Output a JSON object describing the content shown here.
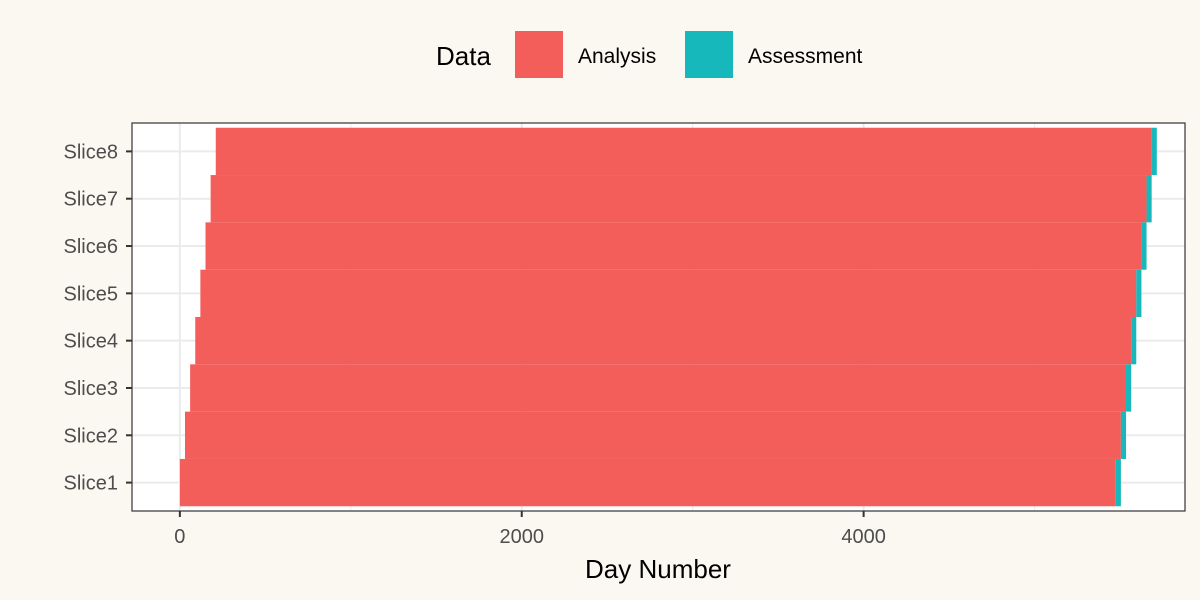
{
  "chart_data": {
    "type": "bar",
    "orientation": "horizontal",
    "stacked": true,
    "title": "",
    "xlabel": "Day Number",
    "ylabel": "",
    "categories": [
      "Slice1",
      "Slice2",
      "Slice3",
      "Slice4",
      "Slice5",
      "Slice6",
      "Slice7",
      "Slice8"
    ],
    "series": [
      {
        "name": "Analysis",
        "color": "#F35E5A",
        "ranges": [
          [
            0,
            5475
          ],
          [
            30,
            5505
          ],
          [
            60,
            5535
          ],
          [
            90,
            5565
          ],
          [
            120,
            5595
          ],
          [
            150,
            5625
          ],
          [
            180,
            5655
          ],
          [
            210,
            5685
          ]
        ]
      },
      {
        "name": "Assessment",
        "color": "#17B8BB",
        "ranges": [
          [
            5475,
            5505
          ],
          [
            5505,
            5535
          ],
          [
            5535,
            5565
          ],
          [
            5565,
            5595
          ],
          [
            5595,
            5625
          ],
          [
            5625,
            5655
          ],
          [
            5655,
            5685
          ],
          [
            5685,
            5715
          ]
        ]
      }
    ],
    "xticks": [
      0,
      2000,
      4000
    ],
    "xtick_labels": [
      "0",
      "2000",
      "4000"
    ],
    "xlim": [
      -280,
      5880
    ],
    "grid": true,
    "legend": {
      "title": "Data",
      "position": "top",
      "entries": [
        "Analysis",
        "Assessment"
      ]
    }
  }
}
